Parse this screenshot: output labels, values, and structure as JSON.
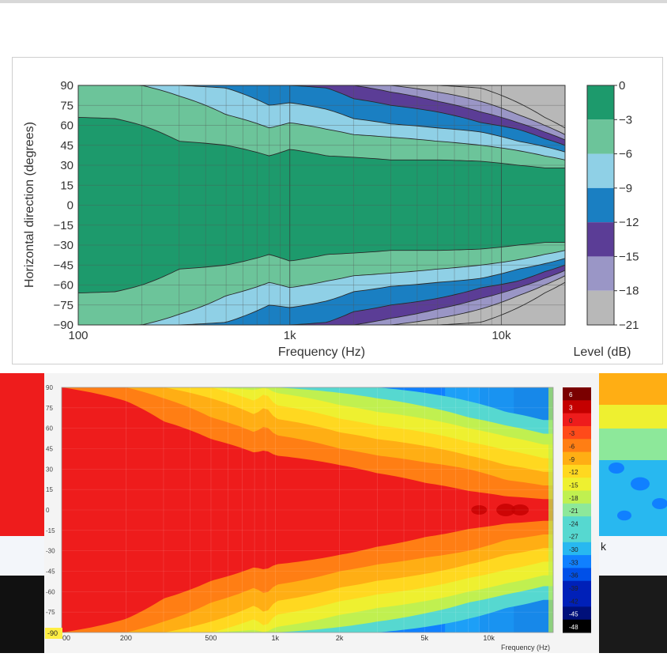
{
  "colors": {
    "top_bands": [
      "#1d9a6c",
      "#6cc49a",
      "#8fd0e6",
      "#1a7fc2",
      "#5b3d96",
      "#9a96c6",
      "#b8b8b8"
    ],
    "heat_bands": [
      "#7a0000",
      "#c40000",
      "#ee1c1c",
      "#ff4a1a",
      "#ff7e14",
      "#ffae14",
      "#ffd820",
      "#eef030",
      "#c0f050",
      "#8de89a",
      "#56d8d0",
      "#28b8f0",
      "#1080ff",
      "#0050e8",
      "#0020b8",
      "#00107a",
      "#000000"
    ]
  },
  "chart_data": [
    {
      "type": "heatmap",
      "title": "",
      "xlabel": "Frequency (Hz)",
      "ylabel": "Horizontal direction (degrees)",
      "x_scale": "log",
      "xlim": [
        100,
        20000
      ],
      "ylim": [
        -90,
        90
      ],
      "x_ticks": [
        "100",
        "1k",
        "10k"
      ],
      "y_ticks": [
        "90",
        "75",
        "60",
        "45",
        "30",
        "15",
        "0",
        "−15",
        "−30",
        "−45",
        "−60",
        "−75",
        "−90"
      ],
      "colorbar_label": "Level (dB)",
      "colorbar_ticks": [
        "0",
        "−3",
        "−6",
        "−9",
        "−12",
        "−15",
        "−18",
        "−21"
      ],
      "levels_db": [
        0,
        -3,
        -6,
        -9,
        -12,
        -15,
        -18,
        -21
      ],
      "contour_half_angles_deg": {
        "frequency_hz": [
          100,
          150,
          200,
          300,
          500,
          800,
          1000,
          1500,
          2000,
          3000,
          5000,
          8000,
          12000,
          16000,
          20000
        ],
        "minus_3": [
          66,
          65,
          60,
          48,
          45,
          37,
          42,
          37,
          36,
          34,
          34,
          33,
          30,
          28,
          28
        ],
        "minus_6": [
          90,
          90,
          90,
          82,
          68,
          58,
          62,
          57,
          53,
          51,
          48,
          45,
          41,
          37,
          34
        ],
        "minus_9": [
          90,
          90,
          90,
          90,
          88,
          75,
          77,
          72,
          65,
          61,
          58,
          55,
          48,
          44,
          40
        ],
        "minus_12": [
          90,
          90,
          90,
          90,
          90,
          90,
          90,
          88,
          80,
          75,
          70,
          62,
          57,
          50,
          45
        ],
        "minus_15": [
          90,
          90,
          90,
          90,
          90,
          90,
          90,
          90,
          90,
          85,
          78,
          70,
          62,
          55,
          49
        ],
        "minus_18": [
          90,
          90,
          90,
          90,
          90,
          90,
          90,
          90,
          90,
          90,
          85,
          78,
          68,
          60,
          53
        ],
        "minus_21": [
          90,
          90,
          90,
          90,
          90,
          90,
          90,
          90,
          90,
          90,
          90,
          88,
          77,
          66,
          58
        ]
      }
    },
    {
      "type": "heatmap",
      "title": "",
      "xlabel": "Frequency (Hz)",
      "ylabel": "",
      "x_scale": "log",
      "xlim": [
        100,
        20000
      ],
      "ylim": [
        -90,
        90
      ],
      "x_ticks": [
        "00",
        "200",
        "500",
        "1k",
        "2k",
        "5k",
        "10k"
      ],
      "y_ticks": [
        "90",
        "75",
        "60",
        "45",
        "30",
        "15",
        "0",
        "-15",
        "-30",
        "-45",
        "-60",
        "-75",
        "-90"
      ],
      "colorbar_ticks": [
        "6",
        "3",
        "0",
        "-3",
        "-6",
        "-9",
        "-12",
        "-15",
        "-18",
        "-21",
        "-24",
        "-27",
        "-30",
        "-33",
        "-36",
        "-39",
        "-42",
        "-45",
        "-48"
      ],
      "corner_label": "-90",
      "side_label": "k",
      "contour_half_angles_deg": {
        "frequency_hz": [
          100,
          200,
          300,
          500,
          800,
          900,
          1000,
          2000,
          3000,
          5000,
          8000,
          12000,
          18000
        ],
        "minus_3": [
          90,
          80,
          65,
          52,
          42,
          44,
          40,
          33,
          27,
          20,
          14,
          10,
          8
        ],
        "minus_6": [
          90,
          90,
          82,
          68,
          57,
          62,
          55,
          45,
          40,
          35,
          30,
          22,
          18
        ],
        "minus_9": [
          90,
          90,
          90,
          82,
          70,
          76,
          67,
          57,
          52,
          47,
          40,
          33,
          28
        ],
        "minus_12": [
          90,
          90,
          90,
          90,
          80,
          86,
          77,
          67,
          62,
          57,
          50,
          44,
          38
        ],
        "minus_15": [
          90,
          90,
          90,
          90,
          88,
          90,
          86,
          77,
          72,
          67,
          60,
          54,
          48
        ],
        "minus_18": [
          90,
          90,
          90,
          90,
          90,
          90,
          90,
          86,
          82,
          76,
          68,
          62,
          56
        ],
        "minus_24": [
          90,
          90,
          90,
          90,
          90,
          90,
          90,
          90,
          90,
          86,
          80,
          72,
          66
        ]
      }
    }
  ]
}
